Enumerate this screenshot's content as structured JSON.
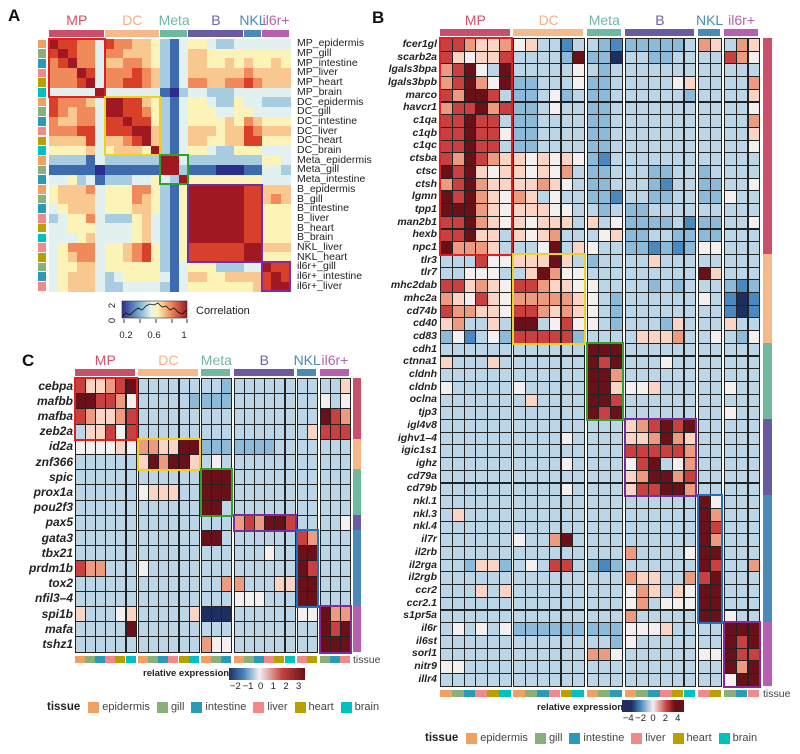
{
  "panel_letters": {
    "a": "A",
    "b": "B",
    "c": "C"
  },
  "colors": {
    "groups": {
      "MP": "#c9506a",
      "DC": "#f5b98a",
      "Meta": "#6fb9a0",
      "B": "#6a5aa0",
      "NKL": "#4a8ab8",
      "il6r+": "#b860b0"
    },
    "group_label": {
      "MP": "#d0506a",
      "DC": "#f5b08a",
      "Meta": "#6fb9a0",
      "B": "#7060a8",
      "NKL": "#4a8ab8",
      "il6r+": "#b860b0"
    },
    "tissues": {
      "epidermis": "#f0a060",
      "gill": "#8ab07a",
      "intestine": "#2a9ab8",
      "liver": "#f08a8a",
      "heart": "#b8a000",
      "brain": "#00c0c0"
    },
    "boxes": {
      "MP": "#e02020",
      "DC": "#f0d020",
      "Meta": "#30a030",
      "B": "#7030a0",
      "NKL": "#2070c0",
      "il6r+": "#8a2a9a"
    },
    "correlation_scale": [
      "#2b2d8c",
      "#3e6bb0",
      "#a8cce0",
      "#e2f0f0",
      "#fbf3b8",
      "#f8c890",
      "#f08a5a",
      "#d8402a",
      "#a01822"
    ],
    "expression_scale": [
      "#1e2e60",
      "#4a88c0",
      "#8cbad8",
      "#bcd6e8",
      "#f4f0f0",
      "#fad4c4",
      "#ec9a80",
      "#c84040",
      "#6a1018"
    ]
  },
  "columns": {
    "groups": [
      {
        "name": "MP",
        "tissues": [
          "epidermis",
          "gill",
          "intestine",
          "liver",
          "heart",
          "brain"
        ]
      },
      {
        "name": "DC",
        "tissues": [
          "epidermis",
          "gill",
          "intestine",
          "liver",
          "heart",
          "brain"
        ]
      },
      {
        "name": "Meta",
        "tissues": [
          "epidermis",
          "gill",
          "intestine"
        ]
      },
      {
        "name": "B",
        "tissues": [
          "epidermis",
          "gill",
          "intestine",
          "liver",
          "heart",
          "brain"
        ]
      },
      {
        "name": "NKL",
        "tissues": [
          "liver",
          "heart"
        ]
      },
      {
        "name": "il6r+",
        "tissues": [
          "gill",
          "intestine",
          "liver"
        ]
      }
    ]
  },
  "chart_data": [
    {
      "id": "A",
      "type": "heatmap",
      "title": "",
      "value_note": "levels 0-8 map correlation from low (blue) to high (dark red)",
      "rows": [
        "MP_epidermis",
        "MP_gill",
        "MP_intestine",
        "MP_liver",
        "MP_heart",
        "MP_brain",
        "DC_epidermis",
        "DC_gill",
        "DC_intestine",
        "DC_liver",
        "DC_heart",
        "DC_brain",
        "Meta_epidermis",
        "Meta_gill",
        "Meta_intestine",
        "B_epidermis",
        "B_gill",
        "B_intestine",
        "B_liver",
        "B_heart",
        "B_brain",
        "NKL_liver",
        "NKL_heart",
        "il6r+_gill",
        "il6r+_intestine",
        "il6r+_liver"
      ],
      "values": [
        "87766376655421344322333333",
        "78766366555421355444444444",
        "67866355665421355445454454",
        "66687366676521355555565555",
        "66678366776521366556676555",
        "33333833333310233222333333",
        "76665388775421344322433222",
        "76566388776421344433443333",
        "65566377877421344445465444",
        "66677377788521355545576555",
        "55557355678521355445577444",
        "44445345554821344322444333",
        "22221322222288322222222443",
        "11111011111188211100011332",
        "33423122233432844444444333",
        "45556344466421488888877555",
        "45555344465421488888877565",
        "34555344455421488888877444",
        "23446322245321488888877444",
        "33444333345321488888877444",
        "33345333345321488888877444",
        "34666344567421477777788555",
        "34566344567421477777788444",
        "34455344444421344422233877",
        "34555323444431355445555787",
        "34555322333321344444445788"
      ],
      "legend": {
        "title": "Correlation",
        "ticks": [
          "0.2",
          "0.6",
          "1"
        ],
        "count_axis_ticks": [
          "0",
          "2"
        ]
      }
    },
    {
      "id": "B",
      "type": "heatmap",
      "value_note": "levels 0-8 map relative expression -4..4",
      "row_groups": [
        {
          "name": "MP",
          "count": 17
        },
        {
          "name": "DC",
          "count": 7
        },
        {
          "name": "Meta",
          "count": 6
        },
        {
          "name": "B",
          "count": 6
        },
        {
          "name": "NKL",
          "count": 10
        },
        {
          "name": "il6r+",
          "count": 5
        }
      ],
      "rows": [
        "fcer1gl",
        "scarb2a",
        "lgals3bpa",
        "lgals3bpb",
        "marco",
        "havcr1",
        "c1qa",
        "c1qb",
        "c1qc",
        "ctsba",
        "ctsc",
        "ctsh",
        "lgmn",
        "tpp1",
        "man2b1",
        "hexb",
        "npc1",
        "tlr3",
        "tlr7",
        "mhc2dab",
        "mhc2a",
        "cd74b",
        "cd40",
        "cd83",
        "cdh1",
        "ctnna1",
        "cldnh",
        "cldnb",
        "oclna",
        "tjp3",
        "igl4v8",
        "ighv1–4",
        "igic1s1",
        "ighz",
        "cd79a",
        "cd79b",
        "nkl.1",
        "nkl.3",
        "nkl.4",
        "il7r",
        "il2rb",
        "il2rga",
        "il2rgb",
        "ccr2",
        "ccr2.1",
        "s1pr5a",
        "il6r",
        "il6st",
        "sorl1",
        "nitr9",
        "illr4"
      ],
      "values": [
        "77655645331332122222365365",
        "75455733332822033223333764",
        "67843833333432333333333333",
        "67864822333422333334533336",
        "76887322342322333333233335",
        "67786722343322333333333334",
        "77877322333322333333333336",
        "77877422333322333333333335",
        "77877322333322333333333334",
        "76876554545421333333333333",
        "87854554546322333223323333",
        "67865555654322333213322334",
        "87865465343322133223322433",
        "88865455544332322333333333",
        "77865454555353422223122334",
        "77855354563334522332222333",
        "86665333483543322121244333",
        "33374455585323333533333333",
        "33444335864433333333385333",
        "77565477655443333232333212",
        "65475466666543233333343101",
        "76655477656543233333333101",
        "56335388347443233325333533",
        "24134277777233335556334324",
        "33333333333388833333333333",
        "53335333333387833343333333",
        "33333333333388633333333333",
        "43333343333388544533333433",
        "33333335333388733333333333",
        "33333333333387833333333433",
        "33333333333333356787833333",
        "33333333334333355686533333",
        "33333333333333377777633333",
        "33333333334333347834633333",
        "33333333333333356886733333",
        "33333333334333357788633333",
        "33333333333333333333384333",
        "35333333333333333333386333",
        "33333333333333333333387333",
        "33333343368333333333386333",
        "33333333333333363333488333",
        "33255234377321233333387336",
        "33333333333333365533678333",
        "33353533333333346535488333",
        "33333333333333346344488333",
        "33333333333333363333388433",
        "34343422222222244453333888",
        "33333333333333243333333878",
        "33333333333366433333344877",
        "44333333333333333333333868",
        "33333333333333333333333488"
      ],
      "legend": {
        "title": "relative expression",
        "ticks": [
          "−4",
          "−2",
          "0",
          "2",
          "4"
        ]
      },
      "tissue_label": "tissue"
    },
    {
      "id": "C",
      "type": "heatmap",
      "value_note": "levels 0-8 map relative expression -2..3",
      "row_groups": [
        {
          "name": "MP",
          "count": 4
        },
        {
          "name": "DC",
          "count": 2
        },
        {
          "name": "Meta",
          "count": 3
        },
        {
          "name": "B",
          "count": 1
        },
        {
          "name": "NKL",
          "count": 5
        },
        {
          "name": "il6r+",
          "count": 3
        }
      ],
      "rows": [
        "cebpa",
        "mafbb",
        "mafba",
        "zeb2a",
        "id2a",
        "znf366",
        "spic",
        "prox1a",
        "pou2f3",
        "pax5",
        "gata3",
        "tbx21",
        "prdm1b",
        "tox2",
        "nfil3–4",
        "spi1b",
        "mafa",
        "tshz1"
      ],
      "values": [
        "75567833333333233333333335",
        "88776433333222233333333434",
        "76556733333333333333333876",
        "35574733333333333333335777",
        "44445466558822222223333333",
        "33333358688534333333333333",
        "33333333333388833333333333",
        "33333345553388833333333333",
        "33333333333388333333333333",
        "33333333333333367688733334",
        "33333333333388333333376333",
        "33333333333333333343388333",
        "76633343333333333333387333",
        "33333333333333663335588333",
        "33333333333333344433388333",
        "53334533333500033333344866",
        "33333833333333333333333878",
        "33333333333364433333333888"
      ],
      "legend": {
        "title": "relative expression",
        "ticks": [
          "−2",
          "−1",
          "0",
          "1",
          "2",
          "3"
        ]
      },
      "tissue_label": "tissue"
    }
  ],
  "tissue_legend": {
    "title": "tissue",
    "items": [
      "epidermis",
      "gill",
      "intestine",
      "liver",
      "heart",
      "brain"
    ]
  }
}
